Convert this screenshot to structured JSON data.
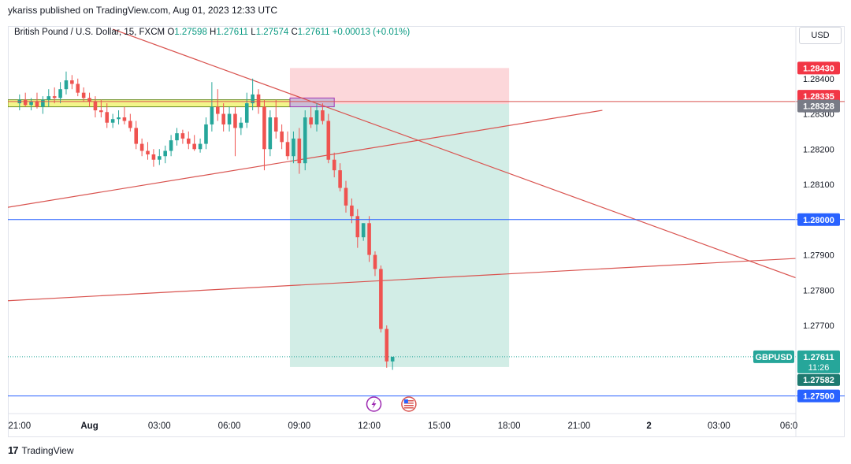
{
  "header": {
    "published_by": "ykariss published on TradingView.com, Aug 01, 2023 12:33 UTC"
  },
  "legend": {
    "symbol": "British Pound / U.S. Dollar, 15, FXCM",
    "open_label": "O",
    "open": "1.27598",
    "high_label": "H",
    "high": "1.27611",
    "low_label": "L",
    "low": "1.27574",
    "close_label": "C",
    "close": "1.27611",
    "change": "+0.00013 (+0.01%)"
  },
  "currency": "USD",
  "footer": {
    "brand": "TradingView",
    "icon": "tradingview-logo-icon"
  },
  "colors": {
    "up": "#26a69a",
    "down": "#ef5350",
    "trendline": "#d9534f",
    "hline": "#2962ff",
    "stop_zone": "#fbd0d3",
    "target_zone": "#cdebe3",
    "supply_zone": "#f3f58a",
    "entry_box": "#c7b8d6"
  },
  "chart_data": {
    "type": "candlestick",
    "symbol": "GBPUSD",
    "timeframe": "15",
    "x_ticks": [
      "21:00",
      "Aug",
      "03:00",
      "06:00",
      "09:00",
      "12:00",
      "15:00",
      "18:00",
      "21:00",
      "2",
      "03:00",
      "06:0"
    ],
    "x_tick_hours": [
      -3,
      0,
      3,
      6,
      9,
      12,
      15,
      18,
      21,
      24,
      27,
      30
    ],
    "y_ticks": [
      1.284,
      1.283,
      1.282,
      1.281,
      1.279,
      1.278,
      1.277
    ],
    "ylim": [
      1.2745,
      1.285
    ],
    "xlim_hours": [
      -3.5,
      30.3
    ],
    "candles": [
      {
        "t": -3.0,
        "o": 1.2833,
        "h": 1.28355,
        "l": 1.2831,
        "c": 1.2834
      },
      {
        "t": -2.75,
        "o": 1.2834,
        "h": 1.2836,
        "l": 1.2832,
        "c": 1.28325
      },
      {
        "t": -2.5,
        "o": 1.28325,
        "h": 1.28345,
        "l": 1.2831,
        "c": 1.28335
      },
      {
        "t": -2.25,
        "o": 1.28335,
        "h": 1.2836,
        "l": 1.28315,
        "c": 1.2832
      },
      {
        "t": -2.0,
        "o": 1.2832,
        "h": 1.2835,
        "l": 1.283,
        "c": 1.2834
      },
      {
        "t": -1.75,
        "o": 1.2834,
        "h": 1.2837,
        "l": 1.2832,
        "c": 1.2835
      },
      {
        "t": -1.5,
        "o": 1.2835,
        "h": 1.28375,
        "l": 1.2833,
        "c": 1.28345
      },
      {
        "t": -1.25,
        "o": 1.28345,
        "h": 1.2839,
        "l": 1.2833,
        "c": 1.2837
      },
      {
        "t": -1.0,
        "o": 1.2837,
        "h": 1.2842,
        "l": 1.28355,
        "c": 1.28395
      },
      {
        "t": -0.75,
        "o": 1.28395,
        "h": 1.2841,
        "l": 1.2837,
        "c": 1.28385
      },
      {
        "t": -0.5,
        "o": 1.28385,
        "h": 1.284,
        "l": 1.2835,
        "c": 1.2836
      },
      {
        "t": -0.25,
        "o": 1.2836,
        "h": 1.28375,
        "l": 1.28335,
        "c": 1.28345
      },
      {
        "t": 0.0,
        "o": 1.28345,
        "h": 1.2836,
        "l": 1.2832,
        "c": 1.28335
      },
      {
        "t": 0.25,
        "o": 1.28335,
        "h": 1.2835,
        "l": 1.2829,
        "c": 1.2831
      },
      {
        "t": 0.5,
        "o": 1.2831,
        "h": 1.2834,
        "l": 1.2829,
        "c": 1.28305
      },
      {
        "t": 0.75,
        "o": 1.28305,
        "h": 1.2833,
        "l": 1.2826,
        "c": 1.28275
      },
      {
        "t": 1.0,
        "o": 1.28275,
        "h": 1.283,
        "l": 1.2826,
        "c": 1.28285
      },
      {
        "t": 1.25,
        "o": 1.28285,
        "h": 1.2831,
        "l": 1.2827,
        "c": 1.2829
      },
      {
        "t": 1.5,
        "o": 1.2829,
        "h": 1.2832,
        "l": 1.2827,
        "c": 1.2828
      },
      {
        "t": 1.75,
        "o": 1.2828,
        "h": 1.283,
        "l": 1.2825,
        "c": 1.2826
      },
      {
        "t": 2.0,
        "o": 1.2826,
        "h": 1.2828,
        "l": 1.282,
        "c": 1.28215
      },
      {
        "t": 2.25,
        "o": 1.28215,
        "h": 1.2823,
        "l": 1.2818,
        "c": 1.28195
      },
      {
        "t": 2.5,
        "o": 1.28195,
        "h": 1.2822,
        "l": 1.2817,
        "c": 1.28185
      },
      {
        "t": 2.75,
        "o": 1.28185,
        "h": 1.282,
        "l": 1.2815,
        "c": 1.2817
      },
      {
        "t": 3.0,
        "o": 1.2817,
        "h": 1.282,
        "l": 1.28155,
        "c": 1.2818
      },
      {
        "t": 3.25,
        "o": 1.2818,
        "h": 1.2821,
        "l": 1.2816,
        "c": 1.28195
      },
      {
        "t": 3.5,
        "o": 1.28195,
        "h": 1.2824,
        "l": 1.2818,
        "c": 1.28225
      },
      {
        "t": 3.75,
        "o": 1.28225,
        "h": 1.2826,
        "l": 1.2821,
        "c": 1.28245
      },
      {
        "t": 4.0,
        "o": 1.28245,
        "h": 1.28255,
        "l": 1.28215,
        "c": 1.2823
      },
      {
        "t": 4.25,
        "o": 1.2823,
        "h": 1.2825,
        "l": 1.282,
        "c": 1.28215
      },
      {
        "t": 4.5,
        "o": 1.28215,
        "h": 1.2824,
        "l": 1.28195,
        "c": 1.282
      },
      {
        "t": 4.75,
        "o": 1.282,
        "h": 1.2823,
        "l": 1.2819,
        "c": 1.28215
      },
      {
        "t": 5.0,
        "o": 1.28215,
        "h": 1.2829,
        "l": 1.282,
        "c": 1.2827
      },
      {
        "t": 5.25,
        "o": 1.2827,
        "h": 1.2839,
        "l": 1.2825,
        "c": 1.2832
      },
      {
        "t": 5.5,
        "o": 1.2832,
        "h": 1.2837,
        "l": 1.2828,
        "c": 1.283
      },
      {
        "t": 5.75,
        "o": 1.283,
        "h": 1.2833,
        "l": 1.2825,
        "c": 1.2827
      },
      {
        "t": 6.0,
        "o": 1.2827,
        "h": 1.2832,
        "l": 1.2825,
        "c": 1.283
      },
      {
        "t": 6.25,
        "o": 1.283,
        "h": 1.2832,
        "l": 1.2818,
        "c": 1.2826
      },
      {
        "t": 6.5,
        "o": 1.2826,
        "h": 1.2829,
        "l": 1.2824,
        "c": 1.28275
      },
      {
        "t": 6.75,
        "o": 1.28275,
        "h": 1.2836,
        "l": 1.2826,
        "c": 1.2833
      },
      {
        "t": 7.0,
        "o": 1.2833,
        "h": 1.284,
        "l": 1.2831,
        "c": 1.28355
      },
      {
        "t": 7.25,
        "o": 1.28355,
        "h": 1.2837,
        "l": 1.283,
        "c": 1.2832
      },
      {
        "t": 7.5,
        "o": 1.2832,
        "h": 1.2834,
        "l": 1.2814,
        "c": 1.282
      },
      {
        "t": 7.75,
        "o": 1.282,
        "h": 1.2831,
        "l": 1.2818,
        "c": 1.2829
      },
      {
        "t": 8.0,
        "o": 1.2829,
        "h": 1.2834,
        "l": 1.2823,
        "c": 1.2825
      },
      {
        "t": 8.25,
        "o": 1.2825,
        "h": 1.2827,
        "l": 1.282,
        "c": 1.2822
      },
      {
        "t": 8.5,
        "o": 1.2822,
        "h": 1.2825,
        "l": 1.2817,
        "c": 1.2818
      },
      {
        "t": 8.75,
        "o": 1.2818,
        "h": 1.2825,
        "l": 1.2816,
        "c": 1.2823
      },
      {
        "t": 9.0,
        "o": 1.2823,
        "h": 1.2826,
        "l": 1.2813,
        "c": 1.2816
      },
      {
        "t": 9.25,
        "o": 1.2816,
        "h": 1.2831,
        "l": 1.2814,
        "c": 1.2829
      },
      {
        "t": 9.5,
        "o": 1.2829,
        "h": 1.2832,
        "l": 1.2826,
        "c": 1.2827
      },
      {
        "t": 9.75,
        "o": 1.2827,
        "h": 1.2833,
        "l": 1.2825,
        "c": 1.2831
      },
      {
        "t": 10.0,
        "o": 1.2831,
        "h": 1.2833,
        "l": 1.2827,
        "c": 1.2828
      },
      {
        "t": 10.25,
        "o": 1.2828,
        "h": 1.283,
        "l": 1.2816,
        "c": 1.2817
      },
      {
        "t": 10.5,
        "o": 1.2817,
        "h": 1.2819,
        "l": 1.2812,
        "c": 1.2814
      },
      {
        "t": 10.75,
        "o": 1.2814,
        "h": 1.2816,
        "l": 1.2808,
        "c": 1.2809
      },
      {
        "t": 11.0,
        "o": 1.2809,
        "h": 1.2811,
        "l": 1.2802,
        "c": 1.2804
      },
      {
        "t": 11.25,
        "o": 1.2804,
        "h": 1.2806,
        "l": 1.2799,
        "c": 1.2801
      },
      {
        "t": 11.5,
        "o": 1.2801,
        "h": 1.2803,
        "l": 1.2792,
        "c": 1.2795
      },
      {
        "t": 11.75,
        "o": 1.2795,
        "h": 1.2799,
        "l": 1.2794,
        "c": 1.2799
      },
      {
        "t": 12.0,
        "o": 1.2799,
        "h": 1.2801,
        "l": 1.2788,
        "c": 1.279
      },
      {
        "t": 12.25,
        "o": 1.279,
        "h": 1.2791,
        "l": 1.2784,
        "c": 1.2786
      },
      {
        "t": 12.5,
        "o": 1.2786,
        "h": 1.2787,
        "l": 1.2768,
        "c": 1.2769
      },
      {
        "t": 12.75,
        "o": 1.2769,
        "h": 1.277,
        "l": 1.2758,
        "c": 1.27598
      },
      {
        "t": 13.0,
        "o": 1.27598,
        "h": 1.27611,
        "l": 1.27574,
        "c": 1.27611
      }
    ],
    "horizontal_lines": [
      {
        "price": 1.28335,
        "color": "#d9534f"
      },
      {
        "price": 1.28,
        "color": "#2962ff"
      },
      {
        "price": 1.275,
        "color": "#2962ff"
      }
    ],
    "trendlines": [
      {
        "t1": -3.5,
        "p1": 1.28035,
        "t2": 22.0,
        "p2": 1.2831
      },
      {
        "t1": -3.5,
        "p1": 1.2777,
        "t2": 30.3,
        "p2": 1.2789
      },
      {
        "t1": 1.0,
        "p1": 1.2854,
        "t2": 30.3,
        "p2": 1.27835
      }
    ],
    "position": {
      "t_start": 8.6,
      "t_end": 18.0,
      "entry": 1.28328,
      "stop": 1.2843,
      "target": 1.27582
    },
    "supply_zone": {
      "t_start": -3.5,
      "t_end": 8.6,
      "top": 1.2834,
      "bottom": 1.2832
    },
    "entry_box": {
      "t_start": 8.6,
      "t_end": 10.5,
      "top": 1.28345,
      "bottom": 1.2832
    },
    "price_labels": [
      {
        "text": "1.28430",
        "price": 1.2843,
        "bg": "#f23645",
        "fg": "#ffffff"
      },
      {
        "text": "1.28335",
        "price": 1.2835,
        "bg": "#f23645",
        "fg": "#ffffff"
      },
      {
        "text": "1.28328",
        "price": 1.28322,
        "bg": "#787b86",
        "fg": "#ffffff"
      },
      {
        "text": "1.28000",
        "price": 1.28,
        "bg": "#2962ff",
        "fg": "#ffffff"
      },
      {
        "text": "1.27500",
        "price": 1.275,
        "bg": "#2962ff",
        "fg": "#ffffff"
      }
    ],
    "current": {
      "symbol_label": "GBPUSD",
      "price_text": "1.27611",
      "countdown": "11:26",
      "low_text": "1.27582",
      "price": 1.27611
    },
    "event_icons": [
      "lightning-icon",
      "us-flag-icon"
    ],
    "event_hours": [
      12.2,
      13.7
    ]
  }
}
